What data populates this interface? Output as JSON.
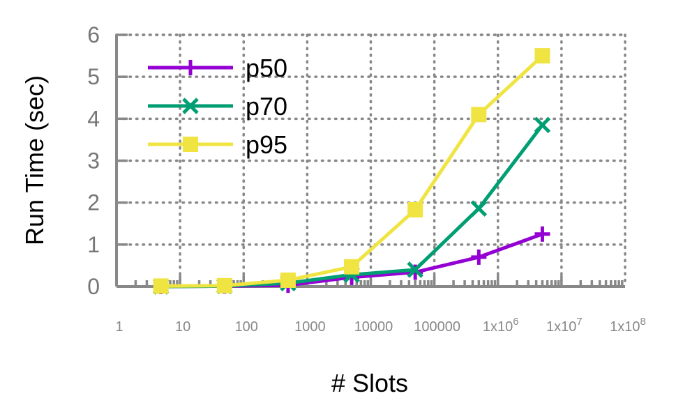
{
  "chart_data": {
    "type": "line",
    "title": "",
    "xlabel": "# Slots",
    "ylabel": "Run Time (sec)",
    "xscale": "log",
    "xlim": [
      1,
      100000000
    ],
    "ylim": [
      0,
      6
    ],
    "grid": true,
    "legend_position": "top-left",
    "x_tick_labels": [
      {
        "value": 1,
        "base": "1",
        "exp": ""
      },
      {
        "value": 10,
        "base": "10",
        "exp": ""
      },
      {
        "value": 100,
        "base": "100",
        "exp": ""
      },
      {
        "value": 1000,
        "base": "1000",
        "exp": ""
      },
      {
        "value": 10000,
        "base": "10000",
        "exp": ""
      },
      {
        "value": 100000,
        "base": "100000",
        "exp": ""
      },
      {
        "value": 1000000,
        "base": "1x10",
        "exp": "6"
      },
      {
        "value": 10000000,
        "base": "1x10",
        "exp": "7"
      },
      {
        "value": 100000000,
        "base": "1x10",
        "exp": "8"
      }
    ],
    "y_tick_labels": [
      "0",
      "1",
      "2",
      "3",
      "4",
      "5",
      "6"
    ],
    "x": [
      5,
      50,
      500,
      5000,
      50000,
      500000,
      5000000
    ],
    "series": [
      {
        "name": "p50",
        "color": "#9400d3",
        "marker": "plus",
        "values": [
          0.0,
          0.01,
          0.03,
          0.22,
          0.34,
          0.7,
          1.25
        ]
      },
      {
        "name": "p70",
        "color": "#009e73",
        "marker": "cross",
        "values": [
          0.0,
          0.01,
          0.08,
          0.28,
          0.4,
          1.86,
          3.85
        ]
      },
      {
        "name": "p95",
        "color": "#f0e442",
        "marker": "square",
        "values": [
          0.01,
          0.02,
          0.15,
          0.47,
          1.83,
          4.1,
          5.5
        ]
      }
    ]
  }
}
